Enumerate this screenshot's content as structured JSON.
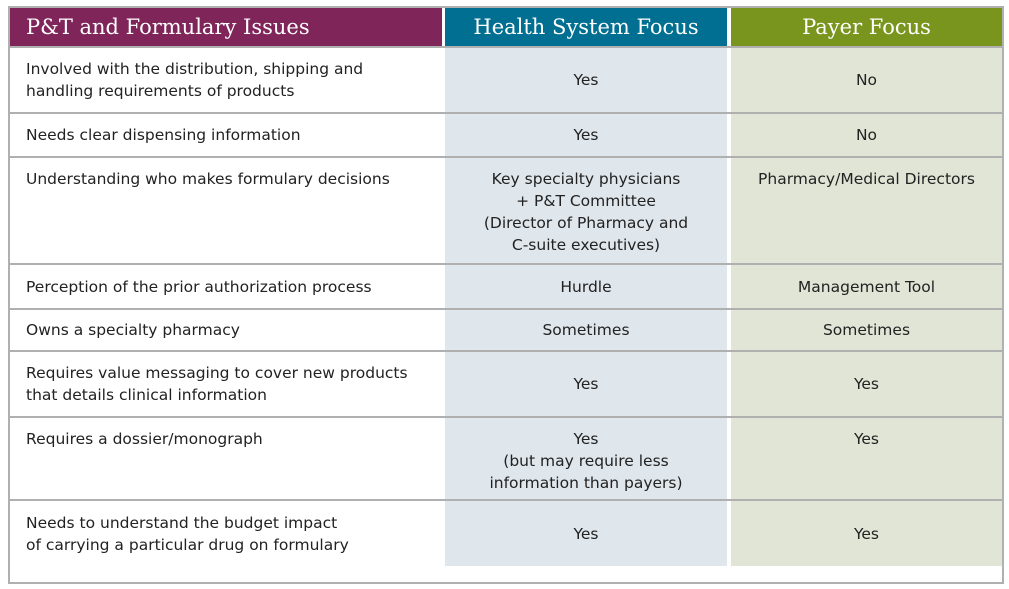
{
  "headers": [
    "P&T and Formulary Issues",
    "Health System Focus",
    "Payer Focus"
  ],
  "colors": {
    "issues": "#7f2559",
    "health": "#006f91",
    "payer": "#7a951e"
  },
  "rows": [
    {
      "issue": "Involved with the distribution, shipping and handling requirements of products",
      "health": "Yes",
      "payer": "No"
    },
    {
      "issue": "Needs clear dispensing information",
      "health": "Yes",
      "payer": "No"
    },
    {
      "issue": "Understanding who makes formulary decisions",
      "health": "Key specialty physicians + P&T Committee (Director of Pharmacy and C-suite executives)",
      "payer": "Pharmacy/Medical Directors"
    },
    {
      "issue": "Perception of the prior authorization process",
      "health": "Hurdle",
      "payer": "Management Tool"
    },
    {
      "issue": "Owns a specialty pharmacy",
      "health": "Sometimes",
      "payer": "Sometimes"
    },
    {
      "issue": "Requires value messaging to cover new products that details clinical information",
      "health": "Yes",
      "payer": "Yes"
    },
    {
      "issue": "Requires a dossier/monograph",
      "health": "Yes (but may require less information than payers)",
      "payer": "Yes"
    },
    {
      "issue": "Needs to understand the budget impact of carrying a particular drug on formulary",
      "health": "Yes",
      "payer": "Yes"
    }
  ]
}
